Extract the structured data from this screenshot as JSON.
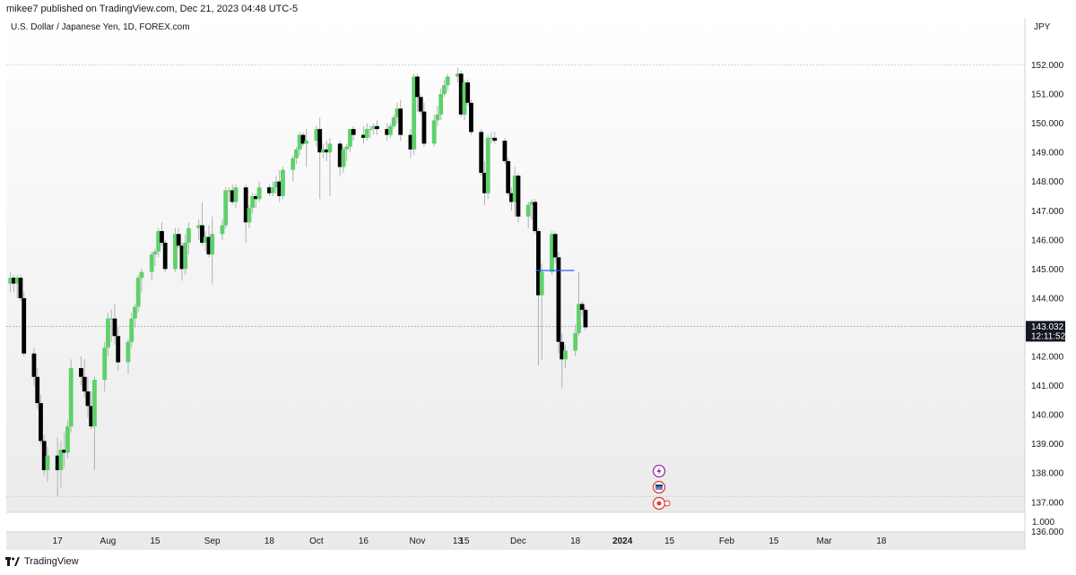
{
  "header": {
    "publish_info": "mikee7 published on TradingView.com, Dec 21, 2023 04:48 UTC-5"
  },
  "footer": {
    "brand": "TradingView"
  },
  "colors": {
    "up": "#5fd06b",
    "down": "#000000",
    "wick": "#aeb1b8",
    "level_line": "#2962ff",
    "price_tag_bg": "#131722"
  },
  "icons": [
    "bolt-event-icon",
    "us-flag-event-icon",
    "dividend-event-icon",
    "tradingview-logo-icon"
  ],
  "chart_data": {
    "type": "candlestick",
    "title": "U.S. Dollar / Japanese Yen, 1D, FOREX.com",
    "currency": "JPY",
    "ylim": [
      135.2,
      152.4
    ],
    "y_ticks": [
      "152.000",
      "151.000",
      "150.000",
      "149.000",
      "148.000",
      "147.000",
      "146.000",
      "145.000",
      "144.000",
      "143.000",
      "142.000",
      "141.000",
      "140.000",
      "139.000",
      "138.000",
      "137.000",
      "136.000"
    ],
    "x_ticks": [
      {
        "label": "17",
        "date": "2023-07-17"
      },
      {
        "label": "Aug",
        "date": "2023-08-01"
      },
      {
        "label": "15",
        "date": "2023-08-15"
      },
      {
        "label": "Sep",
        "date": "2023-09-01"
      },
      {
        "label": "18",
        "date": "2023-09-18"
      },
      {
        "label": "Oct",
        "date": "2023-10-02"
      },
      {
        "label": "16",
        "date": "2023-10-16"
      },
      {
        "label": "Nov",
        "date": "2023-11-01"
      },
      {
        "label": "13",
        "date": "2023-11-13"
      },
      {
        "label": "15",
        "date": "2023-11-15"
      },
      {
        "label": "Dec",
        "date": "2023-12-01"
      },
      {
        "label": "18",
        "date": "2023-12-18"
      },
      {
        "label": "2024",
        "date": "2024-01-01"
      },
      {
        "label": "15",
        "date": "2024-01-15"
      },
      {
        "label": "Feb",
        "date": "2024-02-01"
      },
      {
        "label": "15",
        "date": "2024-02-15"
      },
      {
        "label": "Mar",
        "date": "2024-03-01"
      },
      {
        "label": "18",
        "date": "2024-03-18"
      }
    ],
    "last_price": "143.032",
    "countdown": "12:11:52",
    "secondary_axis_label": "1.000",
    "horizontal_levels": [
      152.0,
      137.2
    ],
    "level_line": {
      "price": 144.95,
      "from": "2023-12-07",
      "to": "2023-12-15"
    },
    "candles": [
      {
        "d": "2023-07-03",
        "o": 144.5,
        "h": 144.9,
        "l": 144.2,
        "c": 144.7
      },
      {
        "d": "2023-07-04",
        "o": 144.7,
        "h": 144.8,
        "l": 144.2,
        "c": 144.5
      },
      {
        "d": "2023-07-05",
        "o": 144.5,
        "h": 144.8,
        "l": 144.0,
        "c": 144.7
      },
      {
        "d": "2023-07-06",
        "o": 144.7,
        "h": 144.8,
        "l": 143.9,
        "c": 144.0
      },
      {
        "d": "2023-07-07",
        "o": 144.0,
        "h": 144.2,
        "l": 142.0,
        "c": 142.1
      },
      {
        "d": "2023-07-10",
        "o": 142.1,
        "h": 142.3,
        "l": 141.0,
        "c": 141.3
      },
      {
        "d": "2023-07-11",
        "o": 141.3,
        "h": 141.6,
        "l": 140.2,
        "c": 140.4
      },
      {
        "d": "2023-07-12",
        "o": 140.4,
        "h": 140.7,
        "l": 139.0,
        "c": 139.1
      },
      {
        "d": "2023-07-13",
        "o": 139.1,
        "h": 139.3,
        "l": 137.9,
        "c": 138.1
      },
      {
        "d": "2023-07-14",
        "o": 138.1,
        "h": 138.9,
        "l": 137.7,
        "c": 138.6
      },
      {
        "d": "2023-07-17",
        "o": 138.6,
        "h": 139.2,
        "l": 137.2,
        "c": 138.1
      },
      {
        "d": "2023-07-18",
        "o": 138.1,
        "h": 139.1,
        "l": 137.5,
        "c": 138.8
      },
      {
        "d": "2023-07-19",
        "o": 138.8,
        "h": 139.4,
        "l": 138.2,
        "c": 138.7
      },
      {
        "d": "2023-07-20",
        "o": 138.7,
        "h": 139.8,
        "l": 138.5,
        "c": 139.6
      },
      {
        "d": "2023-07-21",
        "o": 139.6,
        "h": 141.9,
        "l": 139.4,
        "c": 141.6
      },
      {
        "d": "2023-07-24",
        "o": 141.6,
        "h": 142.0,
        "l": 141.0,
        "c": 141.3
      },
      {
        "d": "2023-07-25",
        "o": 141.3,
        "h": 141.9,
        "l": 140.6,
        "c": 140.8
      },
      {
        "d": "2023-07-26",
        "o": 140.8,
        "h": 141.3,
        "l": 139.9,
        "c": 140.3
      },
      {
        "d": "2023-07-27",
        "o": 140.3,
        "h": 140.8,
        "l": 139.5,
        "c": 139.6
      },
      {
        "d": "2023-07-28",
        "o": 139.6,
        "h": 141.3,
        "l": 138.1,
        "c": 141.2
      },
      {
        "d": "2023-07-31",
        "o": 141.2,
        "h": 142.5,
        "l": 140.8,
        "c": 142.3
      },
      {
        "d": "2023-08-01",
        "o": 142.3,
        "h": 143.5,
        "l": 142.0,
        "c": 143.3
      },
      {
        "d": "2023-08-02",
        "o": 143.3,
        "h": 143.6,
        "l": 142.5,
        "c": 143.3
      },
      {
        "d": "2023-08-03",
        "o": 143.3,
        "h": 143.8,
        "l": 142.4,
        "c": 142.7
      },
      {
        "d": "2023-08-04",
        "o": 142.7,
        "h": 143.0,
        "l": 141.5,
        "c": 141.8
      },
      {
        "d": "2023-08-07",
        "o": 141.8,
        "h": 142.6,
        "l": 141.4,
        "c": 142.5
      },
      {
        "d": "2023-08-08",
        "o": 142.5,
        "h": 143.5,
        "l": 142.3,
        "c": 143.3
      },
      {
        "d": "2023-08-09",
        "o": 143.3,
        "h": 143.8,
        "l": 143.0,
        "c": 143.7
      },
      {
        "d": "2023-08-10",
        "o": 143.7,
        "h": 144.8,
        "l": 143.5,
        "c": 144.7
      },
      {
        "d": "2023-08-11",
        "o": 144.7,
        "h": 145.0,
        "l": 144.2,
        "c": 144.9
      },
      {
        "d": "2023-08-14",
        "o": 144.9,
        "h": 145.6,
        "l": 144.6,
        "c": 145.5
      },
      {
        "d": "2023-08-15",
        "o": 145.5,
        "h": 145.7,
        "l": 145.1,
        "c": 145.6
      },
      {
        "d": "2023-08-16",
        "o": 145.6,
        "h": 146.4,
        "l": 145.4,
        "c": 146.3
      },
      {
        "d": "2023-08-17",
        "o": 146.3,
        "h": 146.6,
        "l": 145.8,
        "c": 145.9
      },
      {
        "d": "2023-08-18",
        "o": 145.9,
        "h": 146.0,
        "l": 144.9,
        "c": 145.0
      },
      {
        "d": "2023-08-21",
        "o": 145.0,
        "h": 146.4,
        "l": 144.9,
        "c": 146.2
      },
      {
        "d": "2023-08-22",
        "o": 146.2,
        "h": 146.4,
        "l": 145.7,
        "c": 145.8
      },
      {
        "d": "2023-08-23",
        "o": 145.8,
        "h": 145.9,
        "l": 144.6,
        "c": 145.0
      },
      {
        "d": "2023-08-24",
        "o": 145.0,
        "h": 146.2,
        "l": 144.8,
        "c": 145.9
      },
      {
        "d": "2023-08-25",
        "o": 145.9,
        "h": 146.6,
        "l": 145.5,
        "c": 146.4
      },
      {
        "d": "2023-08-28",
        "o": 146.4,
        "h": 146.7,
        "l": 146.0,
        "c": 146.5
      },
      {
        "d": "2023-08-29",
        "o": 146.5,
        "h": 147.3,
        "l": 145.8,
        "c": 145.9
      },
      {
        "d": "2023-08-30",
        "o": 145.9,
        "h": 146.3,
        "l": 145.6,
        "c": 146.1
      },
      {
        "d": "2023-08-31",
        "o": 146.1,
        "h": 146.5,
        "l": 145.4,
        "c": 145.5
      },
      {
        "d": "2023-09-01",
        "o": 145.5,
        "h": 146.8,
        "l": 144.5,
        "c": 146.2
      },
      {
        "d": "2023-09-04",
        "o": 146.2,
        "h": 146.7,
        "l": 146.0,
        "c": 146.5
      },
      {
        "d": "2023-09-05",
        "o": 146.5,
        "h": 147.8,
        "l": 146.4,
        "c": 147.7
      },
      {
        "d": "2023-09-06",
        "o": 147.7,
        "h": 147.8,
        "l": 147.3,
        "c": 147.7
      },
      {
        "d": "2023-09-07",
        "o": 147.7,
        "h": 147.9,
        "l": 147.2,
        "c": 147.3
      },
      {
        "d": "2023-09-08",
        "o": 147.3,
        "h": 147.9,
        "l": 147.1,
        "c": 147.8
      },
      {
        "d": "2023-09-11",
        "o": 147.8,
        "h": 147.9,
        "l": 145.9,
        "c": 146.6
      },
      {
        "d": "2023-09-12",
        "o": 146.6,
        "h": 147.2,
        "l": 146.4,
        "c": 147.1
      },
      {
        "d": "2023-09-13",
        "o": 147.1,
        "h": 147.6,
        "l": 146.9,
        "c": 147.5
      },
      {
        "d": "2023-09-14",
        "o": 147.5,
        "h": 147.6,
        "l": 147.1,
        "c": 147.4
      },
      {
        "d": "2023-09-15",
        "o": 147.4,
        "h": 148.0,
        "l": 147.3,
        "c": 147.8
      },
      {
        "d": "2023-09-18",
        "o": 147.8,
        "h": 147.9,
        "l": 147.5,
        "c": 147.6
      },
      {
        "d": "2023-09-19",
        "o": 147.6,
        "h": 148.0,
        "l": 147.5,
        "c": 147.8
      },
      {
        "d": "2023-09-20",
        "o": 147.8,
        "h": 148.2,
        "l": 147.6,
        "c": 148.0
      },
      {
        "d": "2023-09-21",
        "o": 148.0,
        "h": 148.4,
        "l": 147.3,
        "c": 147.5
      },
      {
        "d": "2023-09-22",
        "o": 147.5,
        "h": 148.5,
        "l": 147.4,
        "c": 148.4
      },
      {
        "d": "2023-09-25",
        "o": 148.4,
        "h": 148.9,
        "l": 148.0,
        "c": 148.8
      },
      {
        "d": "2023-09-26",
        "o": 148.8,
        "h": 149.2,
        "l": 148.6,
        "c": 149.1
      },
      {
        "d": "2023-09-27",
        "o": 149.1,
        "h": 149.7,
        "l": 148.9,
        "c": 149.6
      },
      {
        "d": "2023-09-28",
        "o": 149.6,
        "h": 149.7,
        "l": 149.2,
        "c": 149.3
      },
      {
        "d": "2023-09-29",
        "o": 149.3,
        "h": 149.8,
        "l": 148.5,
        "c": 149.4
      },
      {
        "d": "2023-10-02",
        "o": 149.4,
        "h": 149.9,
        "l": 149.2,
        "c": 149.8
      },
      {
        "d": "2023-10-03",
        "o": 149.8,
        "h": 150.2,
        "l": 147.4,
        "c": 149.0
      },
      {
        "d": "2023-10-04",
        "o": 149.0,
        "h": 149.3,
        "l": 148.8,
        "c": 149.1
      },
      {
        "d": "2023-10-05",
        "o": 149.1,
        "h": 149.4,
        "l": 148.7,
        "c": 149.0
      },
      {
        "d": "2023-10-06",
        "o": 149.0,
        "h": 149.5,
        "l": 147.5,
        "c": 149.3
      },
      {
        "d": "2023-10-09",
        "o": 149.3,
        "h": 149.4,
        "l": 148.2,
        "c": 148.5
      },
      {
        "d": "2023-10-10",
        "o": 148.5,
        "h": 149.2,
        "l": 148.3,
        "c": 149.1
      },
      {
        "d": "2023-10-11",
        "o": 149.1,
        "h": 149.3,
        "l": 148.7,
        "c": 149.2
      },
      {
        "d": "2023-10-12",
        "o": 149.2,
        "h": 149.8,
        "l": 149.0,
        "c": 149.8
      },
      {
        "d": "2023-10-13",
        "o": 149.8,
        "h": 149.9,
        "l": 149.4,
        "c": 149.6
      },
      {
        "d": "2023-10-16",
        "o": 149.6,
        "h": 149.9,
        "l": 149.3,
        "c": 149.5
      },
      {
        "d": "2023-10-17",
        "o": 149.5,
        "h": 150.0,
        "l": 149.4,
        "c": 149.8
      },
      {
        "d": "2023-10-18",
        "o": 149.8,
        "h": 149.9,
        "l": 149.5,
        "c": 149.8
      },
      {
        "d": "2023-10-19",
        "o": 149.8,
        "h": 150.0,
        "l": 149.6,
        "c": 149.9
      },
      {
        "d": "2023-10-20",
        "o": 149.9,
        "h": 150.1,
        "l": 149.6,
        "c": 149.8
      },
      {
        "d": "2023-10-23",
        "o": 149.8,
        "h": 150.0,
        "l": 149.4,
        "c": 149.6
      },
      {
        "d": "2023-10-24",
        "o": 149.6,
        "h": 150.0,
        "l": 149.5,
        "c": 149.9
      },
      {
        "d": "2023-10-25",
        "o": 149.9,
        "h": 150.3,
        "l": 149.8,
        "c": 150.2
      },
      {
        "d": "2023-10-26",
        "o": 150.2,
        "h": 150.7,
        "l": 150.0,
        "c": 150.5
      },
      {
        "d": "2023-10-27",
        "o": 150.5,
        "h": 150.8,
        "l": 149.4,
        "c": 149.6
      },
      {
        "d": "2023-10-30",
        "o": 149.6,
        "h": 149.8,
        "l": 148.8,
        "c": 149.1
      },
      {
        "d": "2023-10-31",
        "o": 149.1,
        "h": 151.7,
        "l": 148.9,
        "c": 151.6
      },
      {
        "d": "2023-11-01",
        "o": 151.6,
        "h": 151.7,
        "l": 150.4,
        "c": 150.9
      },
      {
        "d": "2023-11-02",
        "o": 150.9,
        "h": 151.0,
        "l": 150.3,
        "c": 150.4
      },
      {
        "d": "2023-11-03",
        "o": 150.4,
        "h": 150.7,
        "l": 149.2,
        "c": 149.3
      },
      {
        "d": "2023-11-06",
        "o": 149.3,
        "h": 150.3,
        "l": 149.2,
        "c": 150.1
      },
      {
        "d": "2023-11-07",
        "o": 150.1,
        "h": 150.6,
        "l": 149.9,
        "c": 150.3
      },
      {
        "d": "2023-11-08",
        "o": 150.3,
        "h": 151.2,
        "l": 150.1,
        "c": 151.0
      },
      {
        "d": "2023-11-09",
        "o": 151.0,
        "h": 151.5,
        "l": 150.9,
        "c": 151.3
      },
      {
        "d": "2023-11-10",
        "o": 151.3,
        "h": 151.7,
        "l": 151.1,
        "c": 151.6
      },
      {
        "d": "2023-11-13",
        "o": 151.6,
        "h": 151.9,
        "l": 151.4,
        "c": 151.7
      },
      {
        "d": "2023-11-14",
        "o": 151.7,
        "h": 151.8,
        "l": 150.2,
        "c": 150.3
      },
      {
        "d": "2023-11-15",
        "o": 150.3,
        "h": 151.5,
        "l": 150.1,
        "c": 151.4
      },
      {
        "d": "2023-11-16",
        "o": 151.4,
        "h": 151.5,
        "l": 150.6,
        "c": 150.7
      },
      {
        "d": "2023-11-17",
        "o": 150.7,
        "h": 150.8,
        "l": 149.6,
        "c": 149.7
      },
      {
        "d": "2023-11-20",
        "o": 149.7,
        "h": 149.8,
        "l": 148.2,
        "c": 148.3
      },
      {
        "d": "2023-11-21",
        "o": 148.3,
        "h": 148.7,
        "l": 147.2,
        "c": 147.6
      },
      {
        "d": "2023-11-22",
        "o": 147.6,
        "h": 149.6,
        "l": 147.4,
        "c": 149.5
      },
      {
        "d": "2023-11-23",
        "o": 149.5,
        "h": 149.7,
        "l": 149.3,
        "c": 149.5
      },
      {
        "d": "2023-11-24",
        "o": 149.5,
        "h": 149.7,
        "l": 149.3,
        "c": 149.4
      },
      {
        "d": "2023-11-27",
        "o": 149.4,
        "h": 149.5,
        "l": 148.6,
        "c": 148.7
      },
      {
        "d": "2023-11-28",
        "o": 148.7,
        "h": 148.8,
        "l": 147.5,
        "c": 147.6
      },
      {
        "d": "2023-11-29",
        "o": 147.6,
        "h": 147.8,
        "l": 147.0,
        "c": 147.3
      },
      {
        "d": "2023-11-30",
        "o": 147.3,
        "h": 148.5,
        "l": 146.8,
        "c": 148.2
      },
      {
        "d": "2023-12-01",
        "o": 148.2,
        "h": 148.3,
        "l": 146.6,
        "c": 146.8
      },
      {
        "d": "2023-12-04",
        "o": 146.8,
        "h": 147.3,
        "l": 146.4,
        "c": 147.2
      },
      {
        "d": "2023-12-05",
        "o": 147.2,
        "h": 147.4,
        "l": 146.7,
        "c": 147.3
      },
      {
        "d": "2023-12-06",
        "o": 147.3,
        "h": 147.4,
        "l": 146.2,
        "c": 146.3
      },
      {
        "d": "2023-12-07",
        "o": 146.3,
        "h": 146.4,
        "l": 141.7,
        "c": 144.1
      },
      {
        "d": "2023-12-08",
        "o": 144.1,
        "h": 145.2,
        "l": 141.9,
        "c": 144.9
      },
      {
        "d": "2023-12-11",
        "o": 144.9,
        "h": 146.3,
        "l": 144.8,
        "c": 146.2
      },
      {
        "d": "2023-12-12",
        "o": 146.2,
        "h": 146.3,
        "l": 145.2,
        "c": 145.4
      },
      {
        "d": "2023-12-13",
        "o": 145.4,
        "h": 145.6,
        "l": 142.1,
        "c": 142.5
      },
      {
        "d": "2023-12-14",
        "o": 142.5,
        "h": 142.8,
        "l": 140.9,
        "c": 141.9
      },
      {
        "d": "2023-12-15",
        "o": 141.9,
        "h": 142.4,
        "l": 141.6,
        "c": 142.2
      },
      {
        "d": "2023-12-18",
        "o": 142.2,
        "h": 143.1,
        "l": 142.0,
        "c": 142.8
      },
      {
        "d": "2023-12-19",
        "o": 142.8,
        "h": 144.9,
        "l": 142.7,
        "c": 143.8
      },
      {
        "d": "2023-12-20",
        "o": 143.8,
        "h": 143.9,
        "l": 143.4,
        "c": 143.6
      },
      {
        "d": "2023-12-21",
        "o": 143.6,
        "h": 143.7,
        "l": 142.9,
        "c": 143.0
      }
    ]
  }
}
